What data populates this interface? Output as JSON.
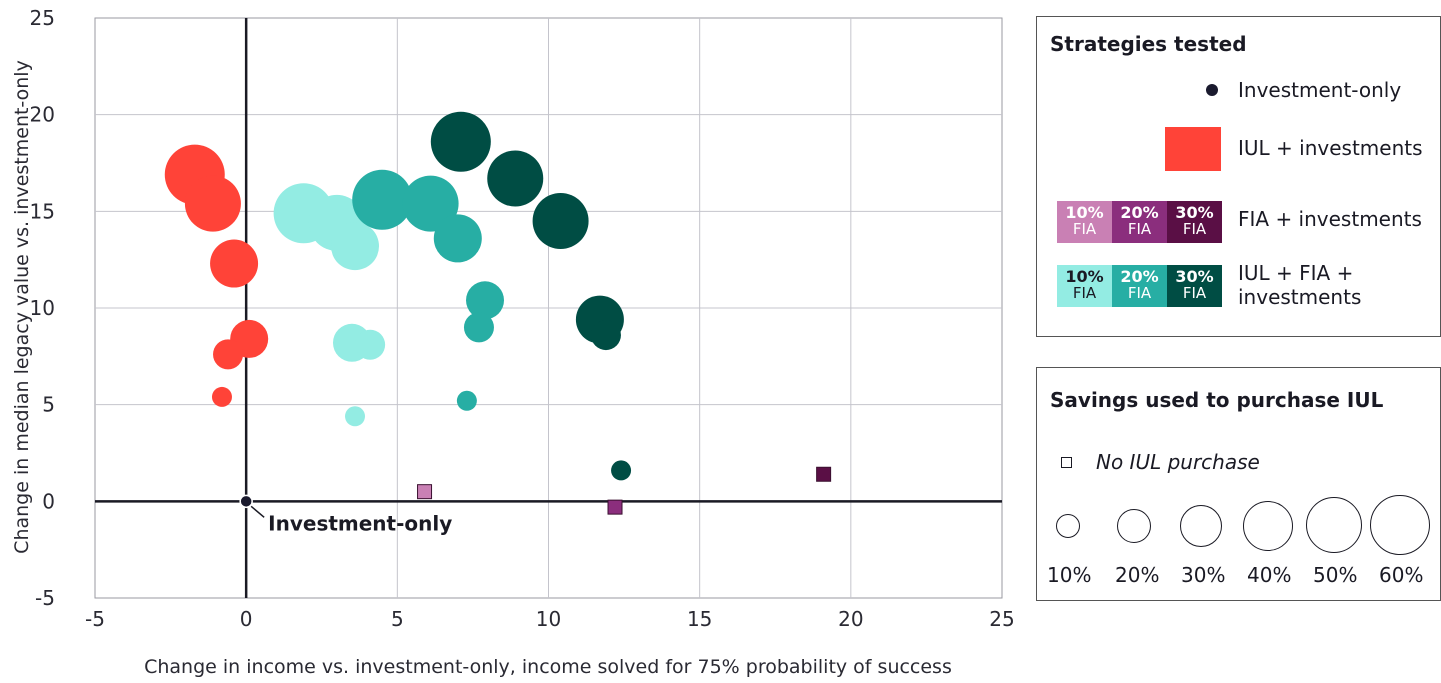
{
  "chart_data": {
    "type": "scatter",
    "xlabel": "Change in income vs. investment-only, income solved for 75% probability of success",
    "ylabel": "Change in median legacy value vs. investment-only",
    "xlim": [
      -5,
      25
    ],
    "ylim": [
      -5,
      25
    ],
    "x_ticks": [
      "-5",
      "0",
      "5",
      "10",
      "15",
      "20",
      "25"
    ],
    "y_ticks": [
      "-5",
      "0",
      "5",
      "10",
      "15",
      "20",
      "25"
    ],
    "grid": true,
    "annotation": "Investment-only",
    "series": [
      {
        "name": "Investment-only",
        "color": "#1a1a2e",
        "marker": "dot",
        "points": [
          {
            "x": 0,
            "y": 0
          }
        ]
      },
      {
        "name": "IUL + investments",
        "color": "#ff4338",
        "marker": "bubble",
        "points": [
          {
            "x": -1.7,
            "y": 16.9,
            "size_pct": 60
          },
          {
            "x": -1.1,
            "y": 15.4,
            "size_pct": 50
          },
          {
            "x": -0.4,
            "y": 12.3,
            "size_pct": 40
          },
          {
            "x": 0.1,
            "y": 8.4,
            "size_pct": 30
          },
          {
            "x": -0.6,
            "y": 7.6,
            "size_pct": 20
          },
          {
            "x": -0.8,
            "y": 5.4,
            "size_pct": 10
          }
        ]
      },
      {
        "name": "FIA + investments 10% FIA",
        "color": "#c980b4",
        "marker": "square",
        "points": [
          {
            "x": 5.9,
            "y": 0.5
          }
        ]
      },
      {
        "name": "FIA + investments 20% FIA",
        "color": "#8b2e7d",
        "marker": "square",
        "points": [
          {
            "x": 12.2,
            "y": -0.3
          }
        ]
      },
      {
        "name": "FIA + investments 30% FIA",
        "color": "#5a0f45",
        "marker": "square",
        "points": [
          {
            "x": 19.1,
            "y": 1.4
          }
        ]
      },
      {
        "name": "IUL + FIA + investments 10% FIA",
        "color": "#93ece3",
        "marker": "bubble",
        "points": [
          {
            "x": 1.9,
            "y": 14.9,
            "size_pct": 60
          },
          {
            "x": 3.0,
            "y": 14.4,
            "size_pct": 50
          },
          {
            "x": 3.6,
            "y": 13.2,
            "size_pct": 40
          },
          {
            "x": 3.5,
            "y": 8.2,
            "size_pct": 30
          },
          {
            "x": 4.1,
            "y": 8.1,
            "size_pct": 20
          },
          {
            "x": 3.6,
            "y": 4.4,
            "size_pct": 10
          }
        ]
      },
      {
        "name": "IUL + FIA + investments 20% FIA",
        "color": "#27aea4",
        "marker": "bubble",
        "points": [
          {
            "x": 4.5,
            "y": 15.6,
            "size_pct": 60
          },
          {
            "x": 6.1,
            "y": 15.4,
            "size_pct": 50
          },
          {
            "x": 7.0,
            "y": 13.6,
            "size_pct": 40
          },
          {
            "x": 7.9,
            "y": 10.4,
            "size_pct": 30
          },
          {
            "x": 7.7,
            "y": 9.0,
            "size_pct": 20
          },
          {
            "x": 7.3,
            "y": 5.2,
            "size_pct": 10
          }
        ]
      },
      {
        "name": "IUL + FIA + investments 30% FIA",
        "color": "#004d44",
        "marker": "bubble",
        "points": [
          {
            "x": 7.1,
            "y": 18.6,
            "size_pct": 60
          },
          {
            "x": 8.9,
            "y": 16.7,
            "size_pct": 50
          },
          {
            "x": 10.4,
            "y": 14.5,
            "size_pct": 50
          },
          {
            "x": 11.7,
            "y": 9.4,
            "size_pct": 40
          },
          {
            "x": 11.9,
            "y": 8.6,
            "size_pct": 20
          },
          {
            "x": 12.4,
            "y": 1.6,
            "size_pct": 10
          }
        ]
      }
    ]
  },
  "legend1": {
    "title": "Strategies tested",
    "items": {
      "investment_only": "Investment-only",
      "iul": "IUL + investments",
      "fia": "FIA + investments",
      "iul_fia_line1": "IUL + FIA +",
      "iul_fia_line2": "investments"
    },
    "fia_segments": [
      {
        "pct": "10%",
        "label": "FIA",
        "color": "#c980b4"
      },
      {
        "pct": "20%",
        "label": "FIA",
        "color": "#8b2e7d"
      },
      {
        "pct": "30%",
        "label": "FIA",
        "color": "#5a0f45"
      }
    ],
    "iul_fia_segments": [
      {
        "pct": "10%",
        "label": "FIA",
        "color": "#93ece3",
        "text_color": "#1a1a24"
      },
      {
        "pct": "20%",
        "label": "FIA",
        "color": "#27aea4",
        "text_color": "#ffffff"
      },
      {
        "pct": "30%",
        "label": "FIA",
        "color": "#004d44",
        "text_color": "#ffffff"
      }
    ]
  },
  "legend2": {
    "title": "Savings used to purchase IUL",
    "no_purchase": "No IUL purchase",
    "sizes": [
      "10%",
      "20%",
      "30%",
      "40%",
      "50%",
      "60%"
    ]
  }
}
